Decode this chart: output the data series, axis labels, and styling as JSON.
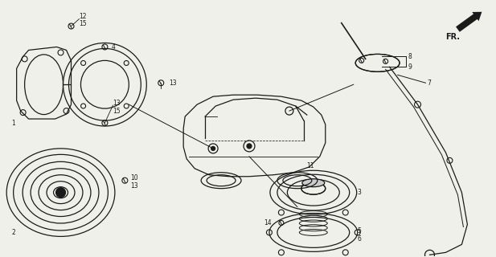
{
  "bg_color": "#f0f0eb",
  "line_color": "#1a1a1a",
  "figsize": [
    6.17,
    3.2
  ],
  "dpi": 100
}
